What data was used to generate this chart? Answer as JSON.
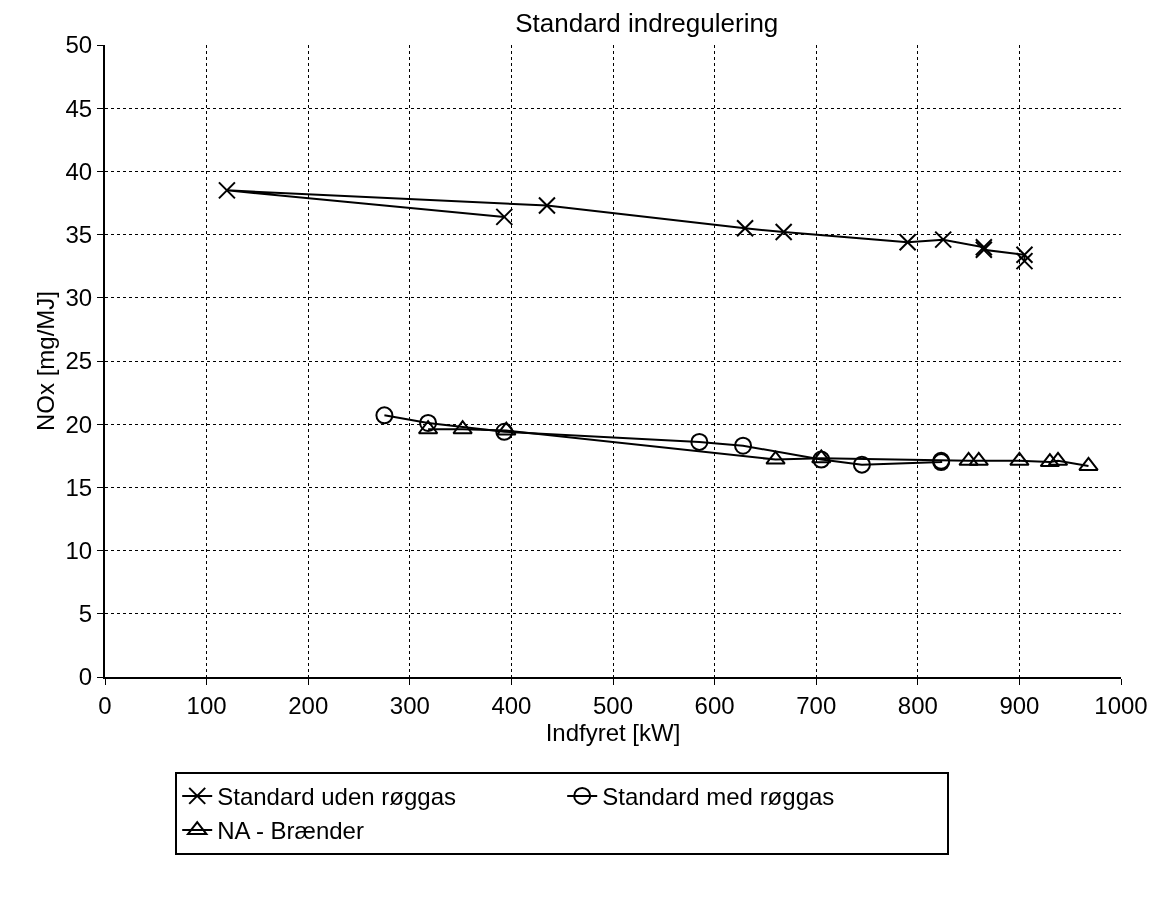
{
  "chart_data": {
    "type": "line",
    "title": "Standard indregulering",
    "xlabel": "Indfyret [kW]",
    "ylabel": "NOx [mg/MJ]",
    "xlim": [
      0,
      1000
    ],
    "xticks": [
      0,
      100,
      200,
      300,
      400,
      500,
      600,
      700,
      800,
      900,
      1000
    ],
    "ylim": [
      0,
      50
    ],
    "yticks": [
      0,
      5,
      10,
      15,
      20,
      25,
      30,
      35,
      40,
      45,
      50
    ],
    "grid": true,
    "legend": "bottom",
    "line_style": "solid",
    "series": [
      {
        "name": "Standard uden røggas",
        "color": "#000000",
        "marker": "cross",
        "x": [
          393,
          120,
          435,
          630,
          668,
          790,
          825,
          865,
          865,
          905,
          905
        ],
        "values": [
          36.4,
          38.5,
          37.3,
          35.5,
          35.2,
          34.4,
          34.6,
          34.0,
          33.8,
          33.4,
          32.9
        ]
      },
      {
        "name": "Standard med røggas",
        "color": "#000000",
        "marker": "circle",
        "x": [
          275,
          318,
          393,
          585,
          628,
          705,
          745,
          823,
          823
        ],
        "values": [
          20.7,
          20.1,
          19.4,
          18.6,
          18.3,
          17.2,
          16.8,
          17.0,
          17.1
        ]
      },
      {
        "name": "NA - Brænder",
        "color": "#000000",
        "marker": "triangle",
        "x": [
          318,
          352,
          395,
          660,
          705,
          850,
          860,
          900,
          930,
          938,
          968
        ],
        "values": [
          19.6,
          19.6,
          19.5,
          17.2,
          17.3,
          17.1,
          17.1,
          17.1,
          17.0,
          17.1,
          16.7
        ]
      }
    ]
  }
}
